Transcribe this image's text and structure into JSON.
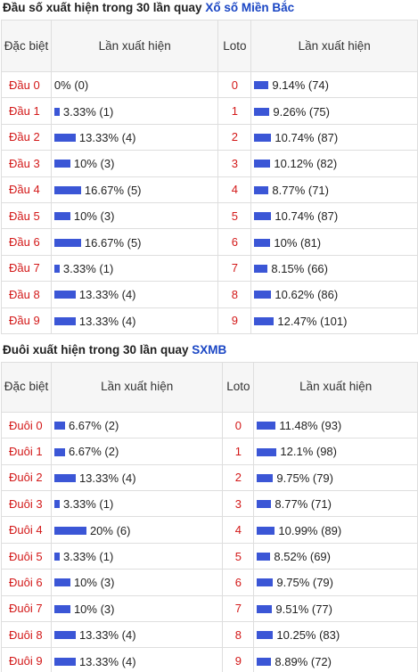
{
  "section1": {
    "title_text": "Đầu số xuất hiện trong 30 lần quay",
    "title_link": "Xổ số Miền Bắc",
    "headers": {
      "c1": "Đặc biệt",
      "c2": "Lần xuất hiện",
      "c3": "Loto",
      "c4": "Lần xuất hiện"
    },
    "rows": [
      {
        "label": "Đầu 0",
        "pct": 0,
        "text": "0% (0)",
        "num": "0",
        "lpct": 9.14,
        "ltext": "9.14% (74)"
      },
      {
        "label": "Đầu 1",
        "pct": 3.33,
        "text": "3.33% (1)",
        "num": "1",
        "lpct": 9.26,
        "ltext": "9.26% (75)"
      },
      {
        "label": "Đầu 2",
        "pct": 13.33,
        "text": "13.33% (4)",
        "num": "2",
        "lpct": 10.74,
        "ltext": "10.74% (87)"
      },
      {
        "label": "Đầu 3",
        "pct": 10,
        "text": "10% (3)",
        "num": "3",
        "lpct": 10.12,
        "ltext": "10.12% (82)"
      },
      {
        "label": "Đầu 4",
        "pct": 16.67,
        "text": "16.67% (5)",
        "num": "4",
        "lpct": 8.77,
        "ltext": "8.77% (71)"
      },
      {
        "label": "Đầu 5",
        "pct": 10,
        "text": "10% (3)",
        "num": "5",
        "lpct": 10.74,
        "ltext": "10.74% (87)"
      },
      {
        "label": "Đầu 6",
        "pct": 16.67,
        "text": "16.67% (5)",
        "num": "6",
        "lpct": 10,
        "ltext": "10% (81)"
      },
      {
        "label": "Đầu 7",
        "pct": 3.33,
        "text": "3.33% (1)",
        "num": "7",
        "lpct": 8.15,
        "ltext": "8.15% (66)"
      },
      {
        "label": "Đầu 8",
        "pct": 13.33,
        "text": "13.33% (4)",
        "num": "8",
        "lpct": 10.62,
        "ltext": "10.62% (86)"
      },
      {
        "label": "Đầu 9",
        "pct": 13.33,
        "text": "13.33% (4)",
        "num": "9",
        "lpct": 12.47,
        "ltext": "12.47% (101)"
      }
    ]
  },
  "section2": {
    "title_text": "Đuôi xuất hiện trong 30 lần quay",
    "title_link": "SXMB",
    "headers": {
      "c1": "Đặc biệt",
      "c2": "Lần xuất hiện",
      "c3": "Loto",
      "c4": "Lần xuất hiện"
    },
    "rows": [
      {
        "label": "Đuôi 0",
        "pct": 6.67,
        "text": "6.67% (2)",
        "num": "0",
        "lpct": 11.48,
        "ltext": "11.48% (93)"
      },
      {
        "label": "Đuôi 1",
        "pct": 6.67,
        "text": "6.67% (2)",
        "num": "1",
        "lpct": 12.1,
        "ltext": "12.1% (98)"
      },
      {
        "label": "Đuôi 2",
        "pct": 13.33,
        "text": "13.33% (4)",
        "num": "2",
        "lpct": 9.75,
        "ltext": "9.75% (79)"
      },
      {
        "label": "Đuôi 3",
        "pct": 3.33,
        "text": "3.33% (1)",
        "num": "3",
        "lpct": 8.77,
        "ltext": "8.77% (71)"
      },
      {
        "label": "Đuôi 4",
        "pct": 20,
        "text": "20% (6)",
        "num": "4",
        "lpct": 10.99,
        "ltext": "10.99% (89)"
      },
      {
        "label": "Đuôi 5",
        "pct": 3.33,
        "text": "3.33% (1)",
        "num": "5",
        "lpct": 8.52,
        "ltext": "8.52% (69)"
      },
      {
        "label": "Đuôi 6",
        "pct": 10,
        "text": "10% (3)",
        "num": "6",
        "lpct": 9.75,
        "ltext": "9.75% (79)"
      },
      {
        "label": "Đuôi 7",
        "pct": 10,
        "text": "10% (3)",
        "num": "7",
        "lpct": 9.51,
        "ltext": "9.51% (77)"
      },
      {
        "label": "Đuôi 8",
        "pct": 13.33,
        "text": "13.33% (4)",
        "num": "8",
        "lpct": 10.25,
        "ltext": "10.25% (83)"
      },
      {
        "label": "Đuôi 9",
        "pct": 13.33,
        "text": "13.33% (4)",
        "num": "9",
        "lpct": 8.89,
        "ltext": "8.89% (72)"
      }
    ]
  },
  "colors": {
    "bar": "#3b56d6",
    "label": "#d31919",
    "link": "#1a46c4"
  }
}
